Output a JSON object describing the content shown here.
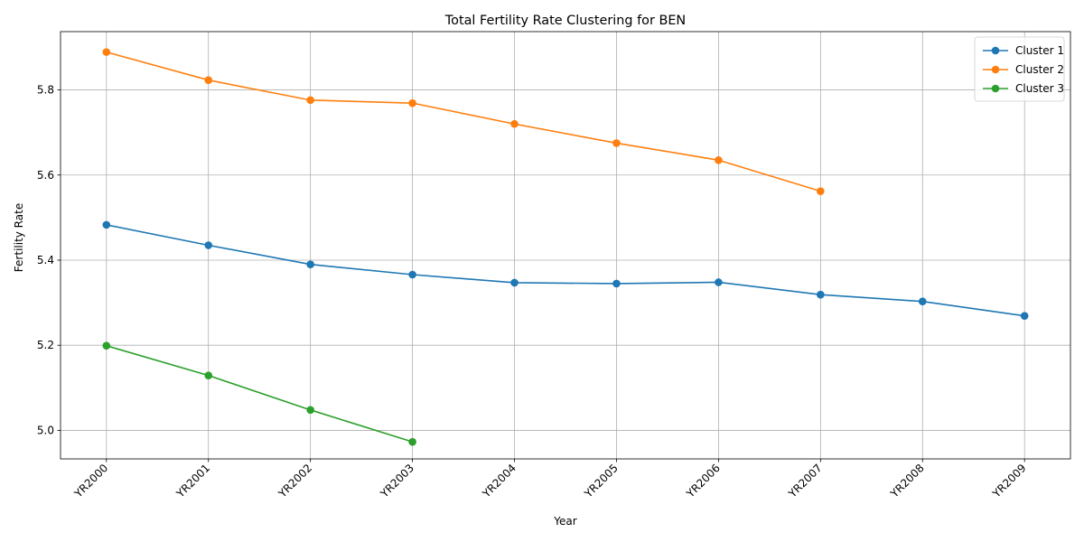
{
  "chart_data": {
    "type": "line",
    "title": "Total Fertility Rate Clustering for BEN",
    "xlabel": "Year",
    "ylabel": "Fertility Rate",
    "categories": [
      "YR2000",
      "YR2001",
      "YR2002",
      "YR2003",
      "YR2004",
      "YR2005",
      "YR2006",
      "YR2007",
      "YR2008",
      "YR2009"
    ],
    "ylim": [
      4.933,
      5.937
    ],
    "yticks": [
      "5.0",
      "5.2",
      "5.4",
      "5.6",
      "5.8"
    ],
    "grid": true,
    "legend_position": "top-right",
    "series": [
      {
        "name": "Cluster 1",
        "color": "#1f77b4",
        "values": [
          5.483,
          5.435,
          5.39,
          5.366,
          5.347,
          5.345,
          5.348,
          5.319,
          5.303,
          5.269
        ]
      },
      {
        "name": "Cluster 2",
        "color": "#ff7f0e",
        "values": [
          5.889,
          5.823,
          5.776,
          5.769,
          5.72,
          5.675,
          5.635,
          5.562,
          null,
          null
        ]
      },
      {
        "name": "Cluster 3",
        "color": "#2ca02c",
        "values": [
          5.199,
          5.129,
          5.048,
          4.973,
          null,
          null,
          null,
          null,
          null,
          null
        ]
      }
    ]
  }
}
